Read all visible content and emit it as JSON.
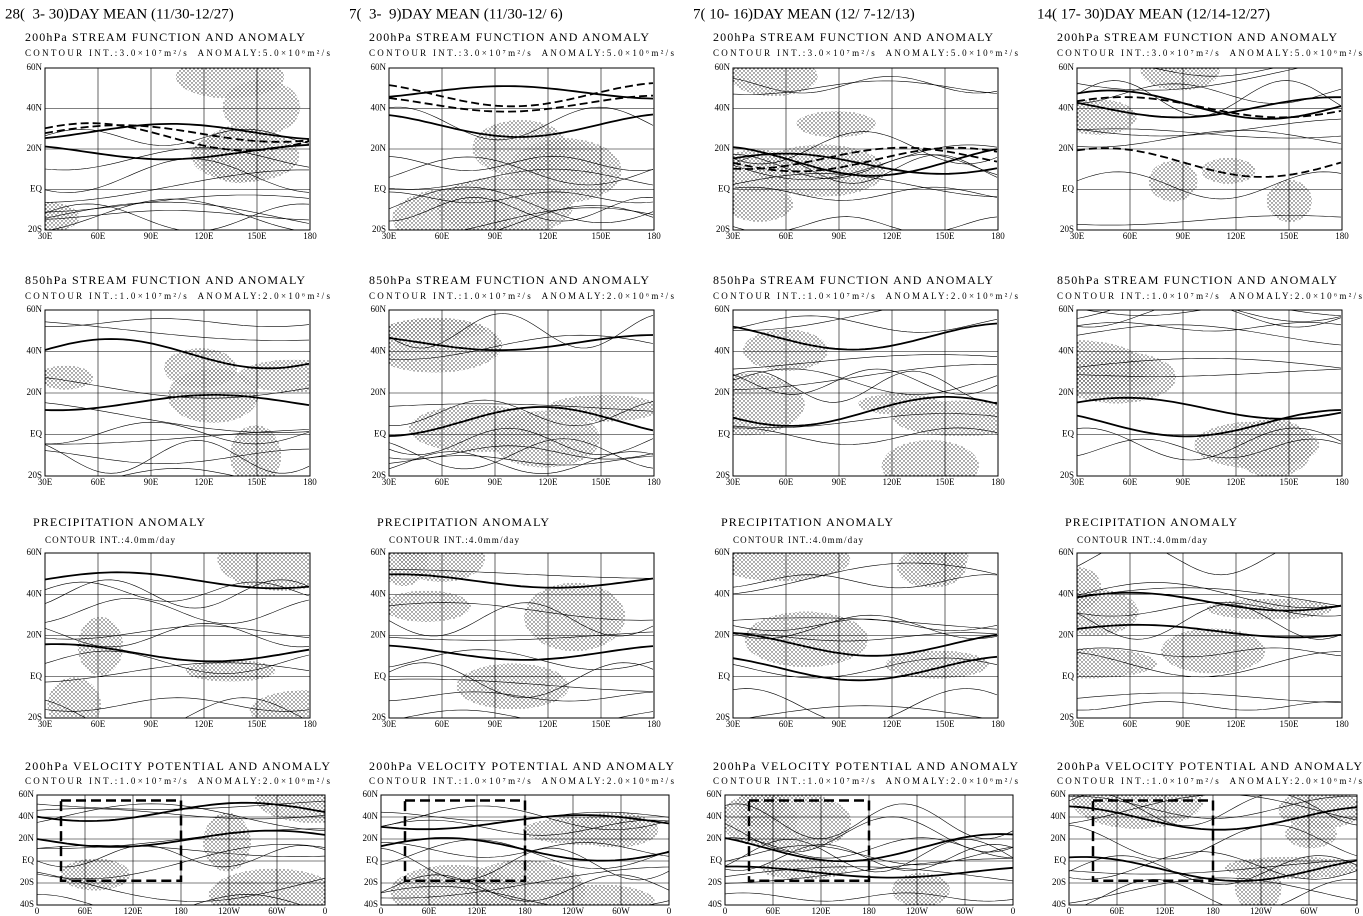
{
  "columns": [
    {
      "header": "28(  3- 30)DAY MEAN (11/30-12/27)"
    },
    {
      "header": "7(  3-  9)DAY MEAN (11/30-12/ 6)"
    },
    {
      "header": "7( 10- 16)DAY MEAN (12/ 7-12/13)"
    },
    {
      "header": "14( 17- 30)DAY MEAN (12/14-12/27)"
    }
  ],
  "panels": [
    {
      "title": "200hPa STREAM FUNCTION AND ANOMALY",
      "contour": "CONTOUR INT.:3.0×10⁷m²/s  ANOMALY:5.0×10⁶m²/s",
      "y_labels": [
        "60N",
        "40N",
        "20N",
        "EQ",
        "20S"
      ],
      "x_labels": [
        "30E",
        "60E",
        "90E",
        "120E",
        "150E",
        "180"
      ]
    },
    {
      "title": "850hPa STREAM FUNCTION AND ANOMALY",
      "contour": "CONTOUR INT.:1.0×10⁷m²/s  ANOMALY:2.0×10⁶m²/s",
      "y_labels": [
        "60N",
        "40N",
        "20N",
        "EQ",
        "20S"
      ],
      "x_labels": [
        "30E",
        "60E",
        "90E",
        "120E",
        "150E",
        "180"
      ]
    },
    {
      "title": "PRECIPITATION ANOMALY",
      "contour": "CONTOUR INT.:4.0mm/day",
      "y_labels": [
        "60N",
        "40N",
        "20N",
        "EQ",
        "20S"
      ],
      "x_labels": [
        "30E",
        "60E",
        "90E",
        "120E",
        "150E",
        "180"
      ]
    },
    {
      "title": "200hPa VELOCITY POTENTIAL AND ANOMALY",
      "contour": "CONTOUR INT.:1.0×10⁷m²/s  ANOMALY:2.0×10⁶m²/s",
      "y_labels": [
        "60N",
        "40N",
        "20N",
        "EQ",
        "20S",
        "40S"
      ],
      "x_labels": [
        "0",
        "60E",
        "120E",
        "180",
        "120W",
        "60W",
        "0"
      ]
    }
  ]
}
